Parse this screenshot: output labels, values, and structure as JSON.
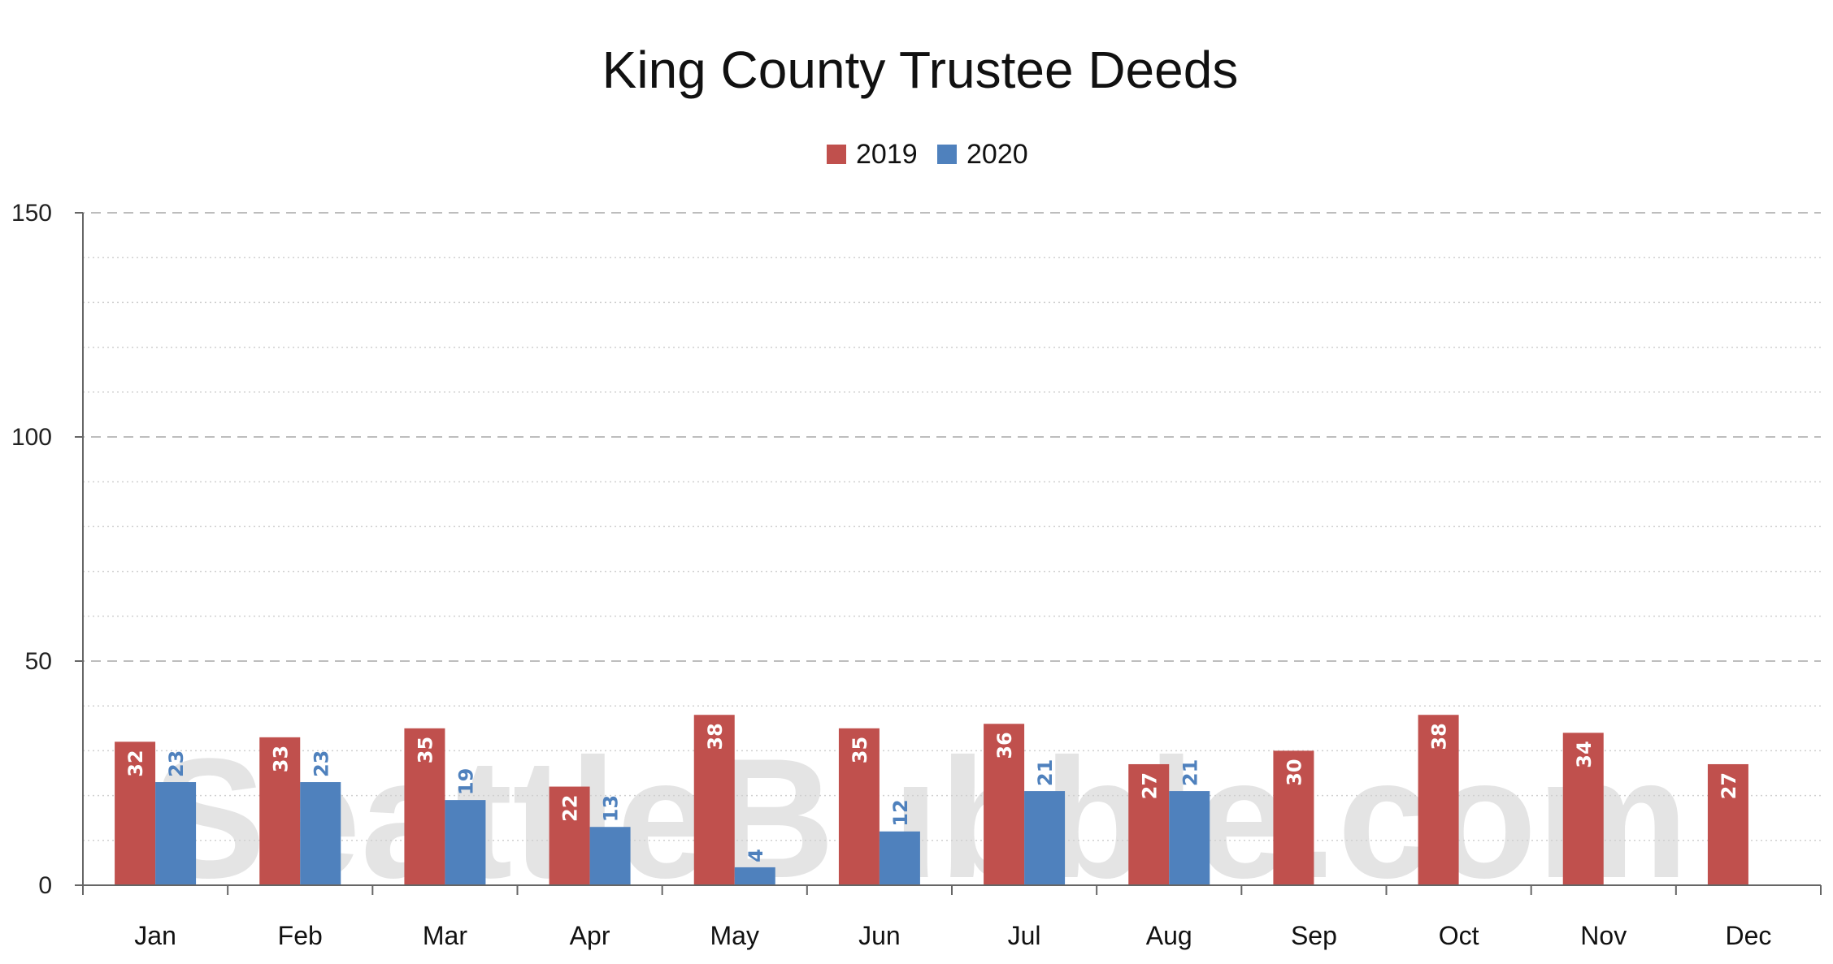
{
  "chart_data": {
    "type": "bar",
    "title": "King County Trustee Deeds",
    "watermark": "SeattleBubble.com",
    "categories": [
      "Jan",
      "Feb",
      "Mar",
      "Apr",
      "May",
      "Jun",
      "Jul",
      "Aug",
      "Sep",
      "Oct",
      "Nov",
      "Dec"
    ],
    "series": [
      {
        "name": "2019",
        "color": "#c0504d",
        "values": [
          32,
          33,
          35,
          22,
          38,
          35,
          36,
          27,
          30,
          38,
          34,
          27
        ]
      },
      {
        "name": "2020",
        "color": "#4f81bd",
        "values": [
          23,
          23,
          19,
          13,
          4,
          12,
          21,
          21,
          null,
          null,
          null,
          null
        ]
      }
    ],
    "ylim": [
      0,
      150
    ],
    "yticks": [
      0,
      50,
      100,
      150
    ],
    "grid": true,
    "legend_position": "top-center",
    "xlabel": "",
    "ylabel": ""
  }
}
